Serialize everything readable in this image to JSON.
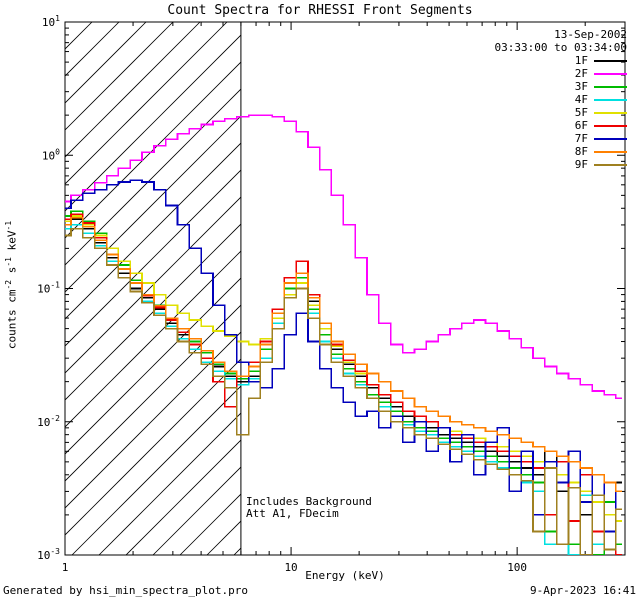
{
  "title": "Count Spectra for RHESSI Front Segments",
  "header": {
    "date": "13-Sep-2002",
    "time_range": "03:33:00 to 03:34:00"
  },
  "annotations": {
    "line1": "Includes Background",
    "line2": "Att A1, FDecim"
  },
  "footer": {
    "left": "Generated by hsi_min_spectra_plot.pro",
    "right": "9-Apr-2023 16:41"
  },
  "axes": {
    "x": {
      "label": "Energy (keV)",
      "scale": "log",
      "min": 1,
      "max": 300,
      "ticks": [
        1,
        10,
        100
      ]
    },
    "y": {
      "label_parts": [
        "counts cm",
        "-2",
        " s",
        "-1",
        " keV",
        "-1"
      ],
      "scale": "log",
      "min": 0.001,
      "max": 10,
      "tick_exponents": [
        -3,
        -2,
        -1,
        0,
        1
      ]
    }
  },
  "region": {
    "hatch_max_x": 6,
    "vline_x": 6
  },
  "chart_data": {
    "type": "line",
    "mode": "histogram-step",
    "title": "Count Spectra for RHESSI Front Segments",
    "xlabel": "Energy (keV)",
    "ylabel": "counts cm^-2 s^-1 keV^-1",
    "xlim": [
      1,
      300
    ],
    "ylim": [
      0.001,
      10
    ],
    "grid": false,
    "legend_position": "top-right",
    "x": [
      1.0,
      1.13,
      1.27,
      1.44,
      1.62,
      1.83,
      2.06,
      2.33,
      2.63,
      2.96,
      3.34,
      3.77,
      4.25,
      4.8,
      5.41,
      6.11,
      6.89,
      7.77,
      8.77,
      9.89,
      11.2,
      12.6,
      14.2,
      16.0,
      18.1,
      20.4,
      23.0,
      26.0,
      29.3,
      33.1,
      37.3,
      42.1,
      47.5,
      53.6,
      60.5,
      68.2,
      77.0,
      86.9,
      98.0,
      110.6,
      124.8,
      140.8,
      158.9,
      179.3,
      202.3,
      228.2,
      257.5,
      290.5
    ],
    "series": [
      {
        "name": "1F",
        "color": "#000000",
        "values": [
          0.3,
          0.33,
          0.28,
          0.22,
          0.17,
          0.13,
          0.1,
          0.085,
          0.07,
          0.055,
          0.045,
          0.038,
          0.03,
          0.026,
          0.022,
          0.02,
          0.022,
          0.03,
          0.05,
          0.085,
          0.13,
          0.08,
          0.05,
          0.035,
          0.027,
          0.022,
          0.018,
          0.015,
          0.013,
          0.011,
          0.01,
          0.009,
          0.008,
          0.0075,
          0.007,
          0.0065,
          0.006,
          0.0055,
          0.005,
          0.0045,
          0.004,
          0.006,
          0.003,
          0.005,
          0.002,
          0.004,
          0.0015,
          0.0035
        ]
      },
      {
        "name": "2F",
        "color": "#ff00ff",
        "values": [
          0.45,
          0.5,
          0.55,
          0.62,
          0.7,
          0.8,
          0.92,
          1.05,
          1.18,
          1.32,
          1.45,
          1.58,
          1.7,
          1.8,
          1.88,
          1.95,
          2.0,
          2.0,
          1.95,
          1.8,
          1.5,
          1.15,
          0.78,
          0.5,
          0.3,
          0.17,
          0.09,
          0.055,
          0.038,
          0.033,
          0.035,
          0.04,
          0.045,
          0.05,
          0.055,
          0.058,
          0.055,
          0.048,
          0.042,
          0.036,
          0.03,
          0.026,
          0.023,
          0.021,
          0.019,
          0.017,
          0.016,
          0.015
        ]
      },
      {
        "name": "3F",
        "color": "#00bb00",
        "values": [
          0.35,
          0.38,
          0.32,
          0.26,
          0.2,
          0.15,
          0.115,
          0.09,
          0.075,
          0.06,
          0.05,
          0.04,
          0.033,
          0.027,
          0.023,
          0.021,
          0.024,
          0.035,
          0.06,
          0.1,
          0.12,
          0.07,
          0.045,
          0.032,
          0.025,
          0.02,
          0.016,
          0.014,
          0.012,
          0.01,
          0.009,
          0.0085,
          0.0075,
          0.007,
          0.0065,
          0.006,
          0.0055,
          0.005,
          0.0045,
          0.004,
          0.0035,
          0.0015,
          0.004,
          0.0012,
          0.003,
          0.001,
          0.0025,
          0.0012
        ]
      },
      {
        "name": "4F",
        "color": "#00e0e0",
        "values": [
          0.28,
          0.3,
          0.26,
          0.21,
          0.16,
          0.12,
          0.095,
          0.08,
          0.065,
          0.052,
          0.042,
          0.035,
          0.028,
          0.024,
          0.021,
          0.019,
          0.021,
          0.03,
          0.055,
          0.09,
          0.11,
          0.065,
          0.04,
          0.03,
          0.023,
          0.019,
          0.015,
          0.013,
          0.011,
          0.0095,
          0.0085,
          0.008,
          0.007,
          0.0065,
          0.006,
          0.0055,
          0.005,
          0.0045,
          0.004,
          0.0035,
          0.003,
          0.0012,
          0.0035,
          0.001,
          0.0028,
          0.0012,
          0.002,
          0.001
        ]
      },
      {
        "name": "5F",
        "color": "#e0e000",
        "values": [
          0.32,
          0.35,
          0.3,
          0.25,
          0.2,
          0.16,
          0.13,
          0.11,
          0.09,
          0.075,
          0.065,
          0.058,
          0.052,
          0.048,
          0.044,
          0.04,
          0.038,
          0.042,
          0.06,
          0.09,
          0.11,
          0.075,
          0.05,
          0.037,
          0.028,
          0.023,
          0.019,
          0.016,
          0.014,
          0.012,
          0.011,
          0.01,
          0.009,
          0.0085,
          0.008,
          0.0075,
          0.007,
          0.0065,
          0.006,
          0.0055,
          0.005,
          0.0045,
          0.004,
          0.0035,
          0.003,
          0.0025,
          0.002,
          0.0018
        ]
      },
      {
        "name": "6F",
        "color": "#ee0000",
        "values": [
          0.33,
          0.36,
          0.31,
          0.24,
          0.18,
          0.14,
          0.11,
          0.088,
          0.072,
          0.058,
          0.047,
          0.038,
          0.03,
          0.02,
          0.013,
          0.022,
          0.028,
          0.04,
          0.07,
          0.12,
          0.16,
          0.09,
          0.055,
          0.038,
          0.029,
          0.024,
          0.019,
          0.016,
          0.014,
          0.012,
          0.011,
          0.01,
          0.009,
          0.008,
          0.0075,
          0.007,
          0.0065,
          0.006,
          0.0055,
          0.005,
          0.0045,
          0.002,
          0.005,
          0.0018,
          0.004,
          0.0015,
          0.0035,
          0.001
        ]
      },
      {
        "name": "7F",
        "color": "#0000bb",
        "values": [
          0.4,
          0.46,
          0.52,
          0.55,
          0.6,
          0.63,
          0.65,
          0.63,
          0.55,
          0.42,
          0.3,
          0.2,
          0.13,
          0.075,
          0.045,
          0.028,
          0.02,
          0.018,
          0.025,
          0.045,
          0.065,
          0.04,
          0.025,
          0.018,
          0.014,
          0.011,
          0.012,
          0.009,
          0.011,
          0.007,
          0.01,
          0.006,
          0.009,
          0.005,
          0.008,
          0.004,
          0.007,
          0.009,
          0.003,
          0.006,
          0.002,
          0.005,
          0.0035,
          0.006,
          0.0025,
          0.004,
          0.0015,
          0.003
        ]
      },
      {
        "name": "8F",
        "color": "#ff8000",
        "values": [
          0.3,
          0.34,
          0.29,
          0.23,
          0.18,
          0.14,
          0.11,
          0.09,
          0.074,
          0.06,
          0.05,
          0.042,
          0.034,
          0.028,
          0.024,
          0.022,
          0.026,
          0.038,
          0.065,
          0.11,
          0.13,
          0.085,
          0.055,
          0.04,
          0.032,
          0.027,
          0.023,
          0.02,
          0.017,
          0.015,
          0.013,
          0.012,
          0.011,
          0.01,
          0.0095,
          0.009,
          0.0085,
          0.008,
          0.0075,
          0.007,
          0.0065,
          0.006,
          0.0055,
          0.005,
          0.0045,
          0.004,
          0.0035,
          0.003
        ]
      },
      {
        "name": "9F",
        "color": "#9f8020",
        "values": [
          0.25,
          0.28,
          0.24,
          0.2,
          0.15,
          0.12,
          0.095,
          0.078,
          0.063,
          0.05,
          0.04,
          0.033,
          0.027,
          0.022,
          0.018,
          0.008,
          0.015,
          0.028,
          0.05,
          0.085,
          0.1,
          0.06,
          0.038,
          0.028,
          0.022,
          0.018,
          0.015,
          0.012,
          0.01,
          0.009,
          0.008,
          0.0075,
          0.0068,
          0.0062,
          0.0057,
          0.0052,
          0.0048,
          0.0044,
          0.004,
          0.0036,
          0.0015,
          0.0045,
          0.0012,
          0.0032,
          0.001,
          0.0028,
          0.0011,
          0.0022
        ]
      }
    ]
  }
}
